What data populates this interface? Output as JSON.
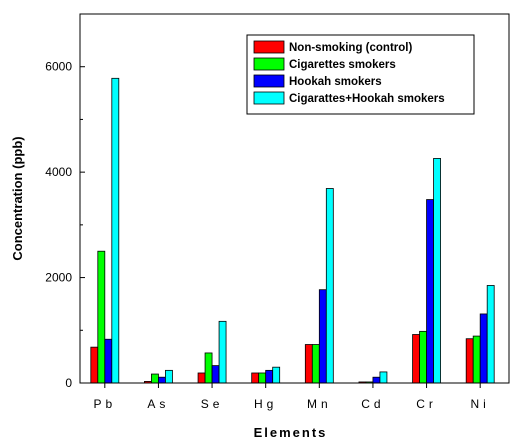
{
  "chart_data": {
    "type": "bar",
    "xlabel": "Elements",
    "ylabel": "Concentration (ppb)",
    "ylim": [
      0,
      7000
    ],
    "yticks": [
      0,
      2000,
      4000,
      6000
    ],
    "grid": false,
    "legend_position": "top-right",
    "categories": [
      "Pb",
      "As",
      "Se",
      "Hg",
      "Mn",
      "Cd",
      "Cr",
      "Ni"
    ],
    "series": [
      {
        "name": "Non-smoking (control)",
        "color": "#ff0000",
        "values": [
          680,
          30,
          190,
          190,
          730,
          20,
          920,
          840
        ]
      },
      {
        "name": "Cigarettes smokers",
        "color": "#00ff00",
        "values": [
          2500,
          170,
          570,
          190,
          730,
          20,
          980,
          890
        ]
      },
      {
        "name": "Hookah smokers",
        "color": "#0000ff",
        "values": [
          830,
          110,
          330,
          240,
          1770,
          110,
          3480,
          1310
        ]
      },
      {
        "name": "Cigarattes+Hookah smokers",
        "color": "#00ffff",
        "values": [
          5780,
          240,
          1170,
          300,
          3690,
          210,
          4260,
          1850
        ]
      }
    ]
  }
}
